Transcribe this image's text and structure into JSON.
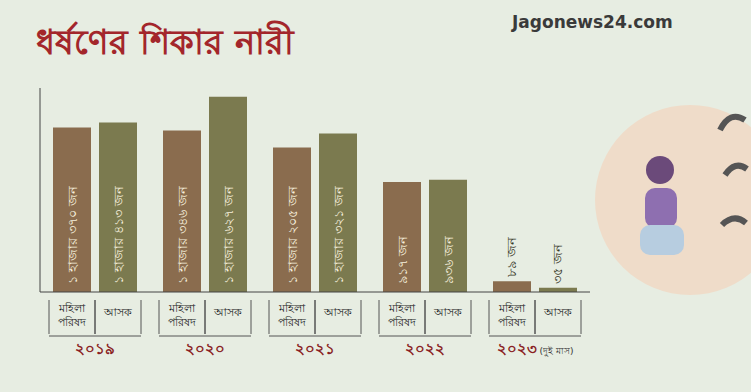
{
  "chart_data": {
    "type": "bar",
    "title": "ধর্ষণের শিকার নারী",
    "logo": "Jagonews24.com",
    "categories": [
      "২০১৯",
      "২০২০",
      "২০২১",
      "২০২২",
      "২০২৩ (দুই মাস)"
    ],
    "series": [
      {
        "name": "মহিলা পরিষদ",
        "color": "#8a6c4e",
        "values": [
          1370,
          1346,
          1205,
          917,
          89
        ],
        "value_labels": [
          "১ হাজার ৩৭০ জন",
          "১ হাজার ৩৪৬ জন",
          "১ হাজার ২০৫ জন",
          "৯১৭ জন",
          "৮৯ জন"
        ]
      },
      {
        "name": "আসক",
        "color": "#7b7a4f",
        "values": [
          1413,
          1627,
          1321,
          936,
          35
        ],
        "value_labels": [
          "১ হাজার ৪১৩ জন",
          "১ হাজার ৬২৭ জন",
          "১ হাজার ৩২১ জন",
          "৯৩৬ জন",
          "৩৫ জন"
        ]
      }
    ],
    "ylim": [
      0,
      1700
    ],
    "yticks": [],
    "grid": false,
    "data_labels": true,
    "tick_labels": "x"
  }
}
